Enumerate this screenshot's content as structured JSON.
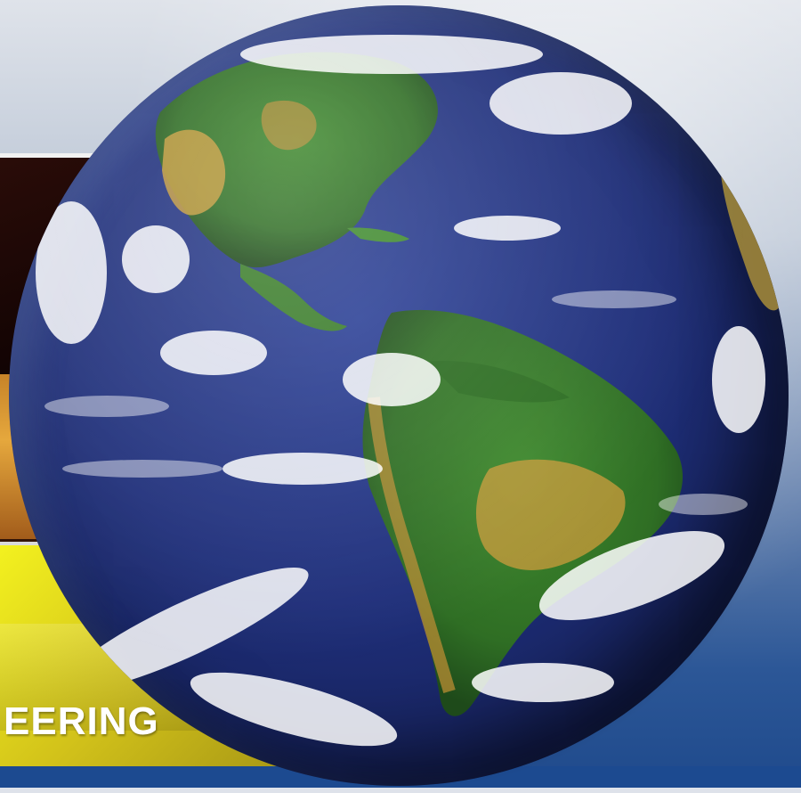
{
  "banner": {
    "text": "EERING",
    "color": "#e6df1c"
  },
  "globe": {
    "subject": "earth-americas",
    "ocean_color": "#1f2f7a",
    "land_color": "#3f8a2e",
    "desert_color": "#c49a3a",
    "cloud_color": "#ffffff"
  },
  "background": {
    "top_color": "#dfe3ea",
    "bottom_color": "#1f4a8c"
  }
}
